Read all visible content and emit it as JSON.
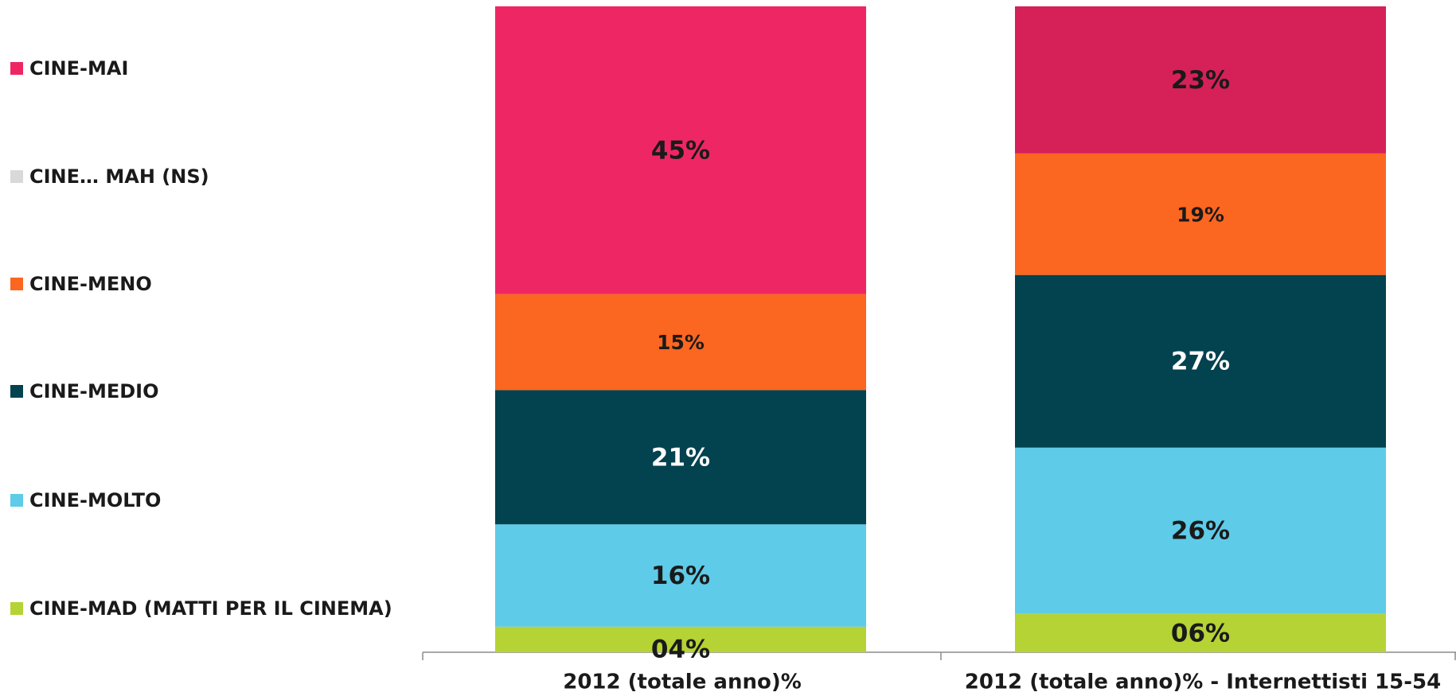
{
  "chart_data": {
    "type": "stacked_bar",
    "categories": [
      "2012 (totale anno)%",
      "2012 (totale anno)% - Internettisti 15-54"
    ],
    "series": [
      {
        "name": "CINE-MAD (MATTI PER IL CINEMA)",
        "color": "#b5d334",
        "values": [
          4,
          6
        ],
        "value_labels": [
          "04%",
          "06%"
        ]
      },
      {
        "name": "CINE-MOLTO",
        "color": "#5ecbe8",
        "values": [
          16,
          26
        ],
        "value_labels": [
          "16%",
          "26%"
        ]
      },
      {
        "name": "CINE-MEDIO",
        "color": "#03424f",
        "values": [
          21,
          27
        ],
        "value_labels": [
          "21%",
          "27%"
        ]
      },
      {
        "name": "CINE-MENO",
        "color": "#fb6620",
        "values": [
          15,
          19
        ],
        "value_labels": [
          "15%",
          "19%"
        ]
      },
      {
        "name": "CINE… MAH (NS)",
        "color": "#d9d9d9",
        "values": [
          0,
          0
        ]
      },
      {
        "name": "CINE-MAI",
        "color": "#ee2764",
        "colors": [
          "#ee2764",
          "#d62058"
        ],
        "values": [
          45,
          23
        ],
        "value_labels": [
          "45%",
          "23%"
        ]
      }
    ]
  }
}
